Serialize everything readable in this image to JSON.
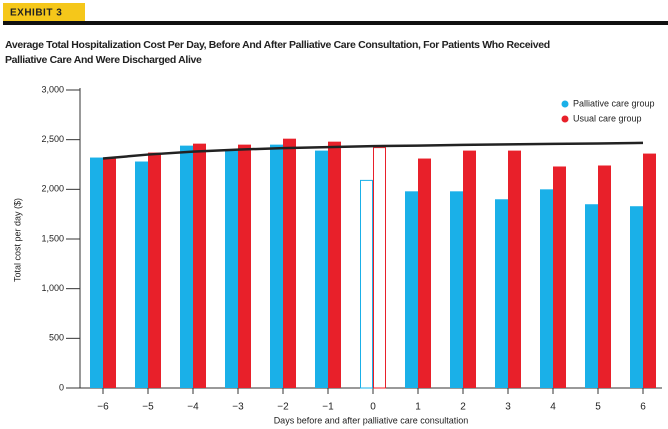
{
  "exhibit": "EXHIBIT 3",
  "chart_data": {
    "type": "bar",
    "title": [
      "Average Total Hospitalization Cost Per Day, Before And After Palliative Care Consultation, For Patients Who Received",
      "Palliative Care And Were Discharged Alive"
    ],
    "y_label": "Total cost per day ($)",
    "x_label": "Days before and after palliative care consultation",
    "categories": [
      "−6",
      "−5",
      "−4",
      "−3",
      "−2",
      "−1",
      "0",
      "1",
      "2",
      "3",
      "4",
      "5",
      "6"
    ],
    "series": [
      {
        "name": "Palliative care group",
        "color": "#1ab0e8",
        "values": [
          2320,
          2280,
          2440,
          2390,
          2450,
          2390,
          2090,
          1980,
          1980,
          1900,
          2000,
          1850,
          1830
        ]
      },
      {
        "name": "Usual care group",
        "color": "#e8202a",
        "values": [
          2310,
          2370,
          2460,
          2450,
          2510,
          2480,
          2420,
          2310,
          2390,
          2390,
          2230,
          2240,
          2360
        ]
      }
    ],
    "outline_categories": [
      "0"
    ],
    "trend_line": {
      "color": "#222222",
      "values": [
        2310,
        2350,
        2380,
        2400,
        2415,
        2425,
        2435,
        2440,
        2448,
        2452,
        2458,
        2462,
        2468
      ]
    },
    "ylim": [
      0,
      3000
    ],
    "yticks": [
      0,
      500,
      {
        "value": 1000,
        "label": "1,000"
      },
      {
        "value": 1500,
        "label": "1,500"
      },
      {
        "value": 2000,
        "label": "2,000"
      },
      {
        "value": 2500,
        "label": "2,500"
      },
      {
        "value": 3000,
        "label": "3,000"
      }
    ],
    "grid": false,
    "legend_position": "top-right"
  }
}
